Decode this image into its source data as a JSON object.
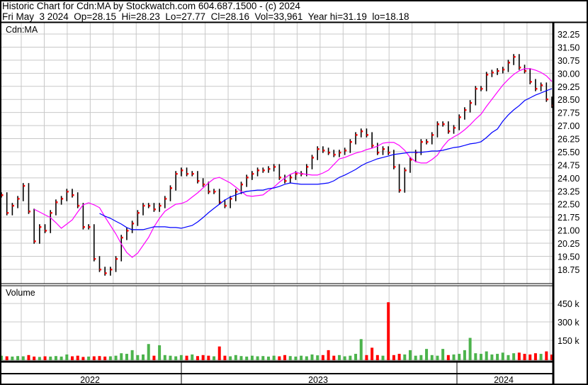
{
  "header": {
    "title": "Historic Chart for Cdn:MA by Stockwatch.com 604.687.1500 - (c) 2024",
    "quote_line": "Fri May  3 2024  Op=28.15  Hi=28.23  Lo=27.77  Cl=28.16  Vol=33,961  Year hi=31.19  lo=18.18"
  },
  "chart_data": [
    {
      "type": "line",
      "title": "Cdn:MA",
      "ylim": [
        18.18,
        32.6
      ],
      "y_ticks": [
        "32.25",
        "31.50",
        "30.75",
        "30.00",
        "29.25",
        "28.50",
        "27.75",
        "27.00",
        "26.25",
        "25.50",
        "24.75",
        "24.00",
        "23.25",
        "22.50",
        "21.75",
        "21.00",
        "20.25",
        "19.50",
        "18.75"
      ],
      "x_tick_labels": [
        "2022",
        "2023",
        "2024"
      ],
      "grid": true,
      "colors": {
        "price": "#000000",
        "close_marker": "#ff0000",
        "ma_short": "#ff00ff",
        "ma_long": "#0000ff"
      },
      "series": [
        {
          "key": "close",
          "values": [
            23.02,
            22.0,
            22.41,
            22.81,
            23.55,
            22.08,
            20.37,
            21.19,
            20.98,
            22.0,
            22.61,
            22.81,
            23.22,
            23.02,
            22.41,
            21.19,
            21.19,
            19.36,
            18.75,
            18.54,
            18.75,
            19.36,
            20.58,
            20.98,
            21.39,
            22.0,
            22.41,
            22.41,
            22.2,
            22.41,
            22.81,
            23.42,
            24.24,
            24.44,
            24.24,
            24.24,
            23.83,
            23.63,
            23.22,
            23.22,
            22.61,
            22.41,
            22.81,
            23.22,
            23.63,
            24.03,
            24.24,
            24.44,
            24.44,
            24.52,
            24.64,
            24.03,
            23.83,
            24.03,
            24.24,
            24.24,
            24.64,
            25.17,
            25.66,
            25.58,
            25.46,
            25.34,
            25.46,
            25.58,
            26.07,
            26.47,
            26.68,
            26.47,
            25.86,
            25.46,
            25.66,
            25.46,
            24.64,
            23.3,
            24.44,
            25.05,
            25.46,
            26.07,
            26.07,
            26.47,
            27.09,
            27.09,
            26.68,
            26.88,
            27.49,
            27.9,
            28.31,
            29.12,
            29.12,
            29.93,
            30.05,
            30.14,
            30.22,
            30.62,
            30.95,
            30.34,
            30.14,
            29.52,
            29.12,
            29.32,
            28.51,
            28.16
          ]
        },
        {
          "key": "ma_short",
          "values": [
            null,
            null,
            null,
            null,
            null,
            null,
            22.2,
            22.04,
            21.88,
            21.72,
            21.43,
            21.11,
            21.35,
            21.59,
            22.04,
            22.45,
            22.57,
            22.45,
            22.29,
            21.76,
            21.27,
            20.78,
            20.21,
            19.72,
            19.44,
            19.68,
            20.13,
            20.58,
            21.19,
            21.68,
            22.08,
            22.29,
            22.49,
            22.53,
            22.65,
            22.9,
            23.14,
            23.42,
            23.71,
            23.95,
            24.03,
            23.87,
            23.71,
            23.47,
            23.22,
            22.98,
            22.94,
            22.98,
            23.02,
            23.26,
            23.47,
            23.75,
            23.99,
            24.2,
            24.32,
            24.24,
            24.2,
            24.16,
            24.16,
            24.28,
            24.44,
            24.77,
            25.09,
            25.17,
            25.3,
            25.42,
            25.5,
            25.62,
            25.7,
            25.82,
            25.99,
            26.03,
            26.03,
            25.86,
            25.58,
            25.17,
            24.93,
            24.85,
            24.85,
            25.05,
            25.3,
            25.78,
            26.15,
            26.35,
            26.52,
            26.76,
            27.04,
            27.37,
            27.65,
            28.1,
            28.51,
            28.92,
            29.32,
            29.65,
            29.93,
            30.14,
            30.26,
            30.26,
            30.18,
            30.05,
            29.85,
            29.53
          ]
        },
        {
          "key": "ma_long",
          "values": [
            null,
            null,
            null,
            null,
            null,
            null,
            null,
            null,
            null,
            null,
            null,
            null,
            null,
            null,
            null,
            null,
            null,
            null,
            21.96,
            21.8,
            21.68,
            21.51,
            21.35,
            21.15,
            21.03,
            21.03,
            21.03,
            21.11,
            21.19,
            21.19,
            21.19,
            21.15,
            21.15,
            21.11,
            21.19,
            21.27,
            21.47,
            21.72,
            22.0,
            22.25,
            22.49,
            22.73,
            22.9,
            23.02,
            23.14,
            23.22,
            23.26,
            23.3,
            23.3,
            23.38,
            23.42,
            23.51,
            23.63,
            23.71,
            23.67,
            23.63,
            23.63,
            23.63,
            23.63,
            23.67,
            23.71,
            23.83,
            24.03,
            24.16,
            24.32,
            24.48,
            24.69,
            24.85,
            24.97,
            25.09,
            25.17,
            25.25,
            25.34,
            25.38,
            25.42,
            25.46,
            25.46,
            25.46,
            25.5,
            25.54,
            25.54,
            25.58,
            25.66,
            25.74,
            25.78,
            25.86,
            25.95,
            25.99,
            26.07,
            26.31,
            26.6,
            26.8,
            27.25,
            27.61,
            27.9,
            28.14,
            28.43,
            28.59,
            28.75,
            28.87,
            29.0,
            29.12
          ]
        }
      ]
    },
    {
      "type": "bar",
      "title": "Volume",
      "unit": "k",
      "ylim": [
        0,
        500
      ],
      "y_ticks": [
        {
          "value": 450,
          "label": "450 k"
        },
        {
          "value": 300,
          "label": "300 k"
        },
        {
          "value": 150,
          "label": "150 k"
        }
      ],
      "colors": {
        "up": "#4cb34c",
        "down": "#ff0000"
      },
      "values": [
        25,
        20,
        18,
        22,
        20,
        30,
        18,
        15,
        20,
        18,
        22,
        18,
        35,
        20,
        25,
        15,
        18,
        20,
        22,
        18,
        20,
        25,
        45,
        40,
        70,
        30,
        35,
        120,
        25,
        110,
        30,
        25,
        20,
        30,
        25,
        35,
        22,
        30,
        25,
        20,
        100,
        25,
        20,
        30,
        22,
        18,
        25,
        20,
        22,
        18,
        25,
        20,
        30,
        22,
        18,
        25,
        20,
        35,
        28,
        30,
        70,
        25,
        30,
        20,
        25,
        40,
        160,
        30,
        90,
        30,
        25,
        460,
        30,
        40,
        35,
        70,
        25,
        30,
        80,
        30,
        25,
        80,
        30,
        35,
        40,
        70,
        170,
        45,
        40,
        60,
        35,
        40,
        50,
        30,
        45,
        50,
        40,
        35,
        45,
        40,
        60,
        34
      ]
    }
  ]
}
